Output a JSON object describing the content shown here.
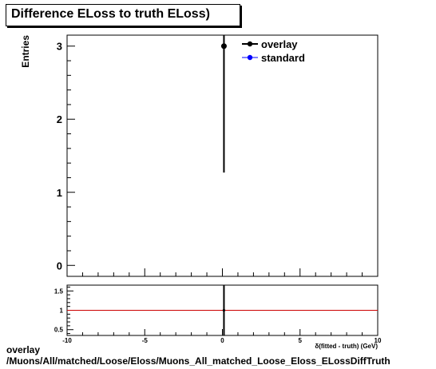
{
  "chart_data": [
    {
      "type": "scatter",
      "title": "Difference ELoss to truth ELoss)",
      "ylabel": "Entries",
      "xlim": [
        -10,
        10
      ],
      "ylim": [
        -0.15,
        3.15
      ],
      "yticks": [
        0,
        1,
        2,
        3
      ],
      "series": [
        {
          "name": "overlay",
          "color": "#000000",
          "points": [
            {
              "x": 0.1,
              "y": 3,
              "yerr_low": 1.73,
              "yerr_high": 0
            }
          ]
        },
        {
          "name": "standard",
          "color": "#0000ff",
          "points": []
        }
      ],
      "legend_position": "top-right"
    },
    {
      "type": "line",
      "xlabel": "δ(fitted - truth) (GeV)",
      "xlim": [
        -10,
        10
      ],
      "ylim": [
        0.35,
        1.65
      ],
      "xticks": [
        -10,
        -5,
        0,
        5,
        10
      ],
      "yticks": [
        0.5,
        1,
        1.5
      ],
      "reference_line": {
        "y": 1,
        "color": "#cc0000"
      },
      "points": [
        {
          "x": 0.1,
          "y": 1,
          "yerr_low": 0.65,
          "yerr_high": 0.65
        }
      ]
    }
  ],
  "footer": {
    "line1": "overlay",
    "line2": "/Muons/All/matched/Loose/Eloss/Muons_All_matched_Loose_Eloss_ELossDiffTruth"
  }
}
